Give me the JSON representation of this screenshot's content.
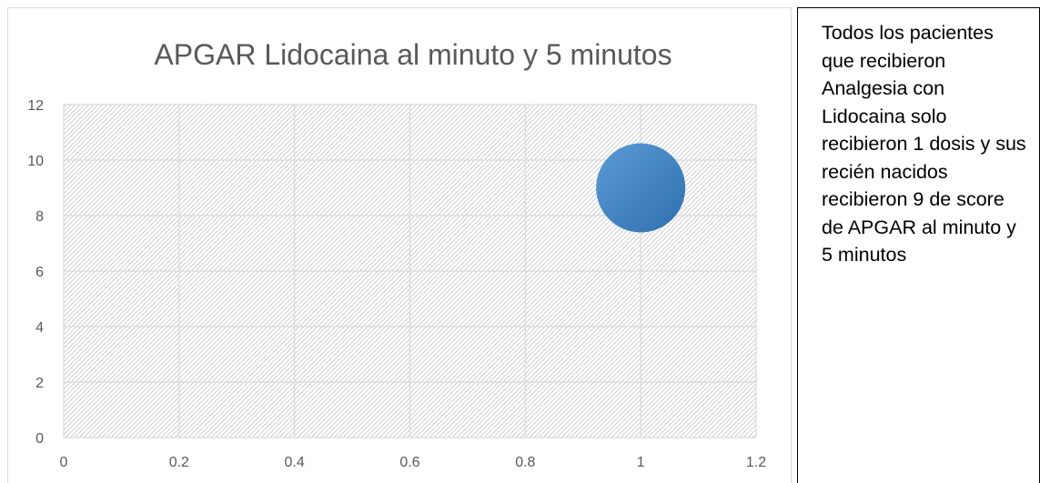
{
  "chart_data": {
    "type": "scatter",
    "title": "APGAR Lidocaina al minuto y 5 minutos",
    "xlabel": "",
    "ylabel": "",
    "xlim": [
      0,
      1.2
    ],
    "ylim": [
      0,
      12
    ],
    "x_ticks": [
      "0",
      "0.2",
      "0.4",
      "0.6",
      "0.8",
      "1",
      "1.2"
    ],
    "y_ticks": [
      "0",
      "2",
      "4",
      "6",
      "8",
      "10",
      "12"
    ],
    "grid": true,
    "legend": "none",
    "points": [
      {
        "x": 1,
        "y": 9
      }
    ],
    "colors": {
      "marker": "#4a88c7",
      "marker_dark": "#2f6fae",
      "grid": "#d9d9d9",
      "text": "#595959"
    }
  },
  "note": {
    "text": "Todos los pacientes que recibieron Analgesia con Lidocaina solo recibieron 1 dosis y sus recién nacidos recibieron 9 de score de APGAR al minuto y 5 minutos"
  }
}
